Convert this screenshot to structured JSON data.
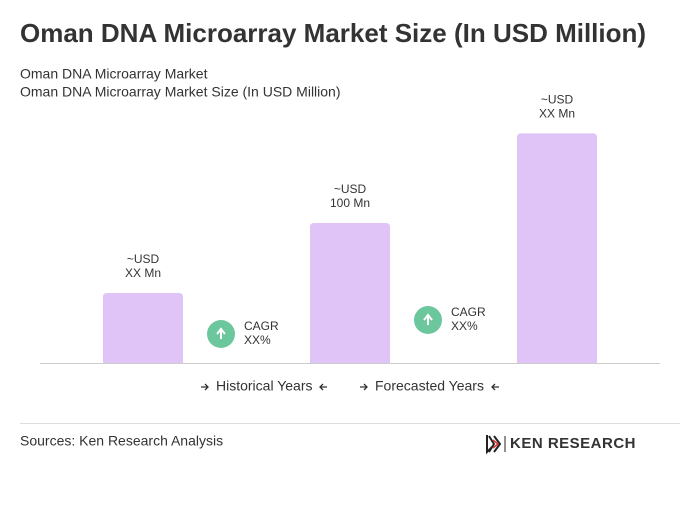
{
  "chart_data": {
    "type": "bar",
    "title": "Oman DNA Microarray Market Size (In USD Million)",
    "subtitle": [
      "Oman DNA Microarray Market",
      "Oman DNA Microarray Market Size (In USD Million)"
    ],
    "values": [
      50,
      100,
      164
    ],
    "value_labels": [
      [
        "~USD",
        "XX Mn"
      ],
      [
        "~USD",
        "100 Mn"
      ],
      [
        "~USD",
        "XX Mn"
      ]
    ],
    "color": "#e0c4f8",
    "annotations": [
      [
        "CAGR",
        "XX%"
      ],
      [
        "CAGR",
        "XX%"
      ]
    ],
    "legend": [
      "Historical Years",
      "Forecasted Years"
    ],
    "source": "Sources: Ken Research Analysis",
    "logo": "KEN RESEARCH"
  }
}
